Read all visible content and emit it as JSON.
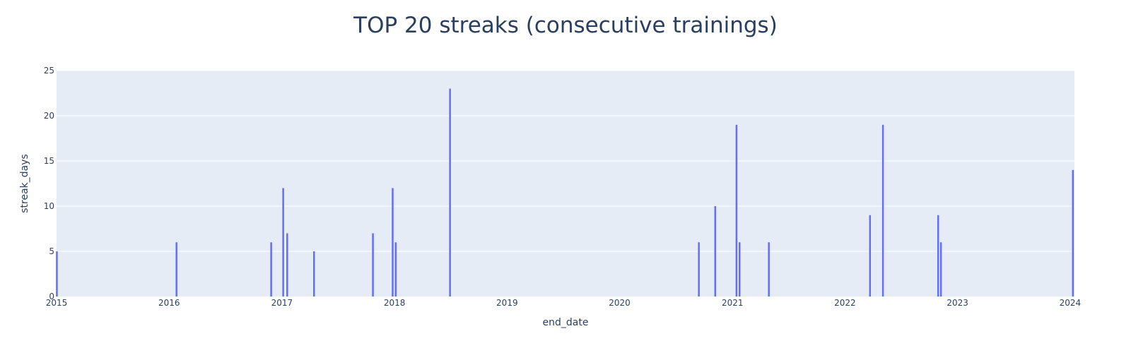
{
  "chart_data": {
    "type": "bar",
    "title": "TOP 20 streaks (consecutive trainings)",
    "xlabel": "end_date",
    "ylabel": "streak_days",
    "xlim": [
      "2015-01-01",
      "2024-01-15"
    ],
    "ylim": [
      0,
      25
    ],
    "x_ticks": [
      "2015-01-01",
      "2016-01-01",
      "2017-01-01",
      "2018-01-01",
      "2019-01-01",
      "2020-01-01",
      "2021-01-01",
      "2022-01-01",
      "2023-01-01",
      "2024-01-01"
    ],
    "x_tick_labels": [
      "2015",
      "2016",
      "2017",
      "2018",
      "2019",
      "2020",
      "2021",
      "2022",
      "2023",
      "2024"
    ],
    "y_ticks": [
      0,
      5,
      10,
      15,
      20,
      25
    ],
    "y_tick_labels": [
      "0",
      "5",
      "10",
      "15",
      "20",
      "25"
    ],
    "grid": true,
    "bar_color": "#636efa",
    "plot_bg": "#e5ecf6",
    "points": [
      {
        "date": "2015-01-02",
        "value": 5
      },
      {
        "date": "2016-01-25",
        "value": 6
      },
      {
        "date": "2016-11-27",
        "value": 6
      },
      {
        "date": "2017-01-05",
        "value": 12
      },
      {
        "date": "2017-01-18",
        "value": 7
      },
      {
        "date": "2017-04-15",
        "value": 5
      },
      {
        "date": "2017-10-23",
        "value": 7
      },
      {
        "date": "2017-12-26",
        "value": 12
      },
      {
        "date": "2018-01-05",
        "value": 6
      },
      {
        "date": "2018-06-30",
        "value": 23
      },
      {
        "date": "2020-09-14",
        "value": 6
      },
      {
        "date": "2020-11-06",
        "value": 10
      },
      {
        "date": "2021-01-14",
        "value": 19
      },
      {
        "date": "2021-01-24",
        "value": 6
      },
      {
        "date": "2021-04-29",
        "value": 6
      },
      {
        "date": "2022-03-23",
        "value": 9
      },
      {
        "date": "2022-05-04",
        "value": 19
      },
      {
        "date": "2022-10-30",
        "value": 9
      },
      {
        "date": "2022-11-08",
        "value": 6
      },
      {
        "date": "2024-01-10",
        "value": 14
      }
    ]
  }
}
